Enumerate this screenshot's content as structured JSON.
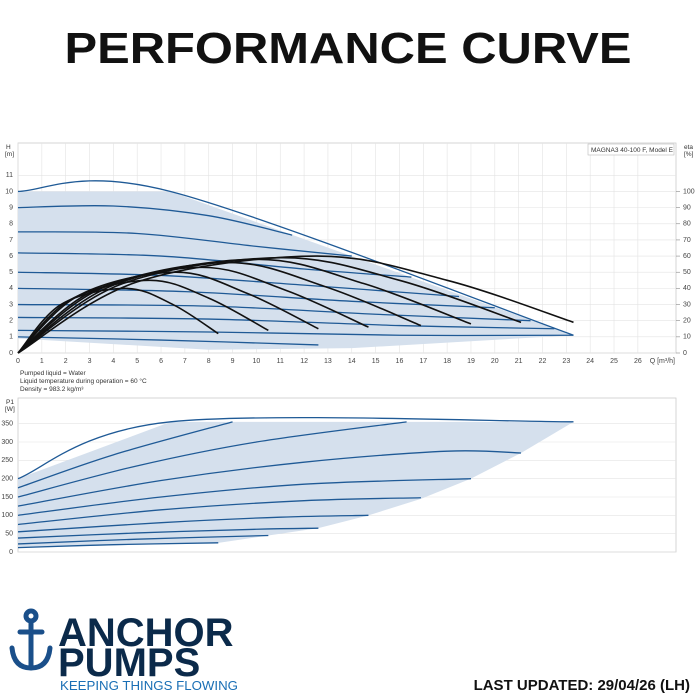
{
  "header": {
    "title": "PERFORMANCE CURVE"
  },
  "chart_data": [
    {
      "type": "line",
      "y_label": "H",
      "y_unit": "[m]",
      "y2_label": "eta",
      "y2_unit": "[%]",
      "x_label": "Q [m³/h]",
      "model": "MAGNA3 40-100 F, Model E",
      "notes": [
        "Pumped liquid = Water",
        "Liquid temperature during operation = 60 °C",
        "Density = 983.2 kg/m³"
      ],
      "xlim": [
        0,
        27.6
      ],
      "xticks": [
        0,
        1,
        2,
        3,
        4,
        5,
        6,
        7,
        8,
        9,
        10,
        11,
        12,
        13,
        14,
        15,
        16,
        17,
        18,
        19,
        20,
        21,
        22,
        23,
        24,
        25,
        26
      ],
      "ylim": [
        0,
        13
      ],
      "yticks": [
        0,
        1,
        2,
        3,
        4,
        5,
        6,
        7,
        8,
        9,
        10,
        11
      ],
      "y2lim": [
        0,
        130
      ],
      "y2ticks": [
        0,
        10,
        20,
        30,
        40,
        50,
        60,
        70,
        80,
        90,
        100
      ],
      "grid": true,
      "envelope": {
        "color": "#d5e0ed",
        "x": [
          0,
          6.4,
          23.3,
          14,
          8,
          0
        ],
        "values": [
          10,
          10,
          1.1,
          0.3,
          0.2,
          0.9
        ]
      },
      "series": [
        {
          "color": "#1f5a96",
          "x": [
            0,
            6.4,
            23.3
          ],
          "values": [
            10,
            10,
            1.1
          ]
        },
        {
          "color": "#1f5a96",
          "x": [
            0,
            4,
            8,
            11.5
          ],
          "values": [
            9,
            9.1,
            8.5,
            7.3
          ]
        },
        {
          "color": "#1f5a96",
          "x": [
            0,
            5,
            10,
            14
          ],
          "values": [
            7.5,
            7.4,
            6.6,
            6.0
          ]
        },
        {
          "color": "#1f5a96",
          "x": [
            0,
            6,
            12,
            16.5
          ],
          "values": [
            6.2,
            6.0,
            5.2,
            4.7
          ]
        },
        {
          "color": "#1f5a96",
          "x": [
            0,
            6,
            12,
            18.5
          ],
          "values": [
            5,
            4.8,
            4.2,
            3.5
          ]
        },
        {
          "color": "#1f5a96",
          "x": [
            0,
            7,
            14,
            20
          ],
          "values": [
            4,
            3.8,
            3.2,
            2.8
          ]
        },
        {
          "color": "#1f5a96",
          "x": [
            0,
            8,
            15,
            21.5
          ],
          "values": [
            3,
            2.9,
            2.4,
            2.0
          ]
        },
        {
          "color": "#1f5a96",
          "x": [
            0,
            8,
            16,
            22.5
          ],
          "values": [
            2.2,
            2.1,
            1.7,
            1.5
          ]
        },
        {
          "color": "#1f5a96",
          "x": [
            0,
            8,
            16,
            23.3
          ],
          "values": [
            1.4,
            1.3,
            1.1,
            1.1
          ]
        },
        {
          "color": "#1f5a96",
          "x": [
            0,
            6,
            12.6
          ],
          "values": [
            1.0,
            0.8,
            0.5
          ]
        },
        {
          "color": "#111111",
          "axis": "y2",
          "x": [
            0,
            1.8,
            4.5,
            6.5,
            8.4
          ],
          "values": [
            0,
            30,
            40,
            30,
            12
          ]
        },
        {
          "color": "#111111",
          "axis": "y2",
          "x": [
            0,
            2.2,
            5.5,
            8,
            10.5
          ],
          "values": [
            0,
            33,
            45,
            34,
            14
          ]
        },
        {
          "color": "#111111",
          "axis": "y2",
          "x": [
            0,
            2.6,
            6.6,
            9.6,
            12.6
          ],
          "values": [
            0,
            36,
            50,
            37,
            15
          ]
        },
        {
          "color": "#111111",
          "axis": "y2",
          "x": [
            0,
            3.1,
            7.7,
            11.2,
            14.7
          ],
          "values": [
            0,
            38,
            53,
            39,
            16
          ]
        },
        {
          "color": "#111111",
          "axis": "y2",
          "x": [
            0,
            3.5,
            8.8,
            12.9,
            16.9
          ],
          "values": [
            0,
            40,
            56,
            41,
            17
          ]
        },
        {
          "color": "#111111",
          "axis": "y2",
          "x": [
            0,
            4,
            10,
            14.5,
            19
          ],
          "values": [
            0,
            42,
            58,
            43,
            18
          ]
        },
        {
          "color": "#111111",
          "axis": "y2",
          "x": [
            0,
            4.4,
            11,
            16,
            21.1
          ],
          "values": [
            0,
            43,
            59,
            45,
            19
          ]
        },
        {
          "color": "#111111",
          "axis": "y2",
          "x": [
            0,
            5,
            12.5,
            18,
            23.3
          ],
          "values": [
            0,
            44,
            60,
            45,
            19
          ]
        }
      ]
    },
    {
      "type": "line",
      "y_label": "P1",
      "y_unit": "[W]",
      "xlim": [
        0,
        27.6
      ],
      "ylim": [
        0,
        420
      ],
      "yticks": [
        0,
        50,
        100,
        150,
        200,
        250,
        300,
        350
      ],
      "grid": true,
      "envelope": {
        "color": "#d5e0ed",
        "x": [
          0,
          6.4,
          23.3,
          21.1,
          19,
          16.9,
          14.7,
          12.6,
          10.5,
          8.4,
          0
        ],
        "values": [
          200,
          355,
          355,
          270,
          200,
          145,
          100,
          65,
          45,
          25,
          12
        ]
      },
      "series": [
        {
          "color": "#1f5a96",
          "x": [
            0,
            6.4,
            23.3
          ],
          "values": [
            200,
            355,
            355
          ]
        },
        {
          "color": "#1f5a96",
          "x": [
            0,
            4,
            9
          ],
          "values": [
            175,
            265,
            355
          ]
        },
        {
          "color": "#1f5a96",
          "x": [
            0,
            5,
            10,
            16.3
          ],
          "values": [
            150,
            235,
            300,
            355
          ]
        },
        {
          "color": "#1f5a96",
          "x": [
            0,
            6,
            12,
            18,
            21.1
          ],
          "values": [
            125,
            195,
            245,
            275,
            270
          ]
        },
        {
          "color": "#1f5a96",
          "x": [
            0,
            6,
            12,
            19
          ],
          "values": [
            100,
            150,
            185,
            200
          ]
        },
        {
          "color": "#1f5a96",
          "x": [
            0,
            6,
            12,
            16.9
          ],
          "values": [
            75,
            115,
            140,
            148
          ]
        },
        {
          "color": "#1f5a96",
          "x": [
            0,
            6,
            11,
            14.7
          ],
          "values": [
            55,
            80,
            95,
            100
          ]
        },
        {
          "color": "#1f5a96",
          "x": [
            0,
            5,
            10,
            12.6
          ],
          "values": [
            38,
            52,
            62,
            65
          ]
        },
        {
          "color": "#1f5a96",
          "x": [
            0,
            5,
            10.5
          ],
          "values": [
            22,
            35,
            45
          ]
        },
        {
          "color": "#1f5a96",
          "x": [
            0,
            4,
            8.4
          ],
          "values": [
            12,
            20,
            25
          ]
        }
      ]
    }
  ],
  "logo": {
    "line1": "ANCHOR",
    "line2": "PUMPS",
    "tagline": "KEEPING THINGS FLOWING"
  },
  "footer": {
    "updated": "LAST UPDATED: 29/04/26 (LH)"
  }
}
